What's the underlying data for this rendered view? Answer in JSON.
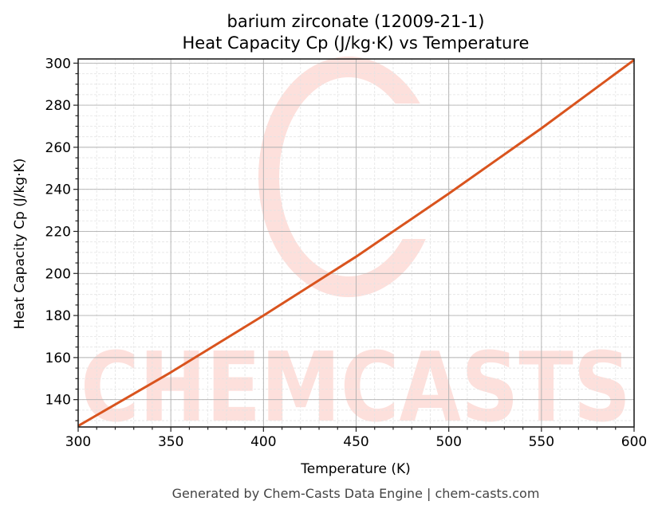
{
  "title_line1": "barium zirconate (12009-21-1)",
  "title_line2": "Heat Capacity Cp (J/kg·K) vs Temperature",
  "footer": "Generated by Chem-Casts Data Engine | chem-casts.com",
  "watermark": "CHEMCASTS",
  "colors": {
    "line": "#d9541e",
    "watermark": "#fde0dc",
    "grid_major": "#b0b0b0",
    "grid_minor": "#e3e3e3",
    "axis": "#222222"
  },
  "chart_data": {
    "type": "line",
    "title": "barium zirconate (12009-21-1)\nHeat Capacity Cp (J/kg·K) vs Temperature",
    "xlabel": "Temperature (K)",
    "ylabel": "Heat Capacity Cp (J/kg·K)",
    "xlim": [
      300,
      600
    ],
    "ylim": [
      127,
      302
    ],
    "xticks": [
      300,
      350,
      400,
      450,
      500,
      550,
      600
    ],
    "yticks": [
      140,
      160,
      180,
      200,
      220,
      240,
      260,
      280,
      300
    ],
    "grid": true,
    "legend": null,
    "series": [
      {
        "name": "Cp",
        "x": [
          300,
          350,
          400,
          450,
          500,
          550,
          600
        ],
        "y": [
          127.5,
          153,
          180,
          208,
          238,
          269,
          301.5
        ]
      }
    ]
  }
}
